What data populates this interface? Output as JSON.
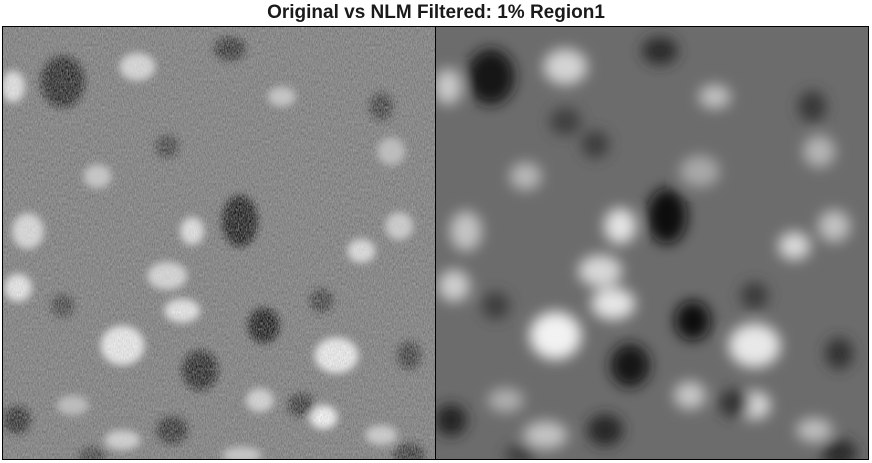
{
  "figure": {
    "title": "Original vs NLM Filtered: 1% Region1"
  },
  "panels": [
    {
      "role": "original",
      "colormap": "grayscale"
    },
    {
      "role": "nlm-filtered",
      "colormap": "grayscale"
    }
  ],
  "colors": {
    "background": "#ffffff",
    "title_text": "#1a1a1a",
    "frame": "#000000",
    "mid_gray": "#777777"
  }
}
